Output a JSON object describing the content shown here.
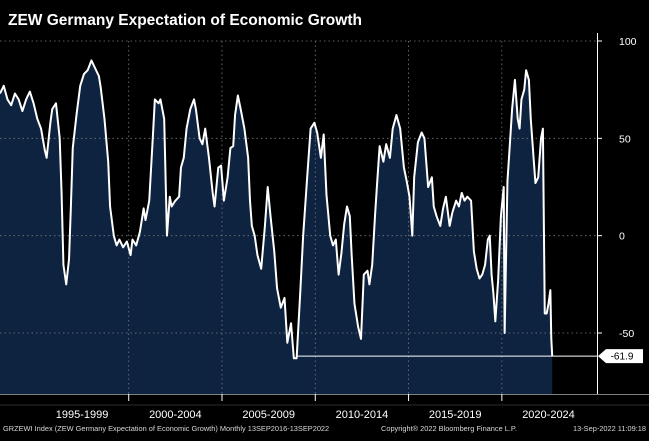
{
  "chart_data": {
    "type": "area",
    "title": "ZEW Germany Expectation of Economic Growth",
    "xlabel": "",
    "ylabel": "",
    "ylim": [
      -81,
      105
    ],
    "xlim": [
      1993.1,
      2025.1
    ],
    "yticks": [
      100,
      50,
      0,
      -50
    ],
    "x_period_labels": [
      {
        "label": "1995-1999",
        "start": 1995,
        "end": 2000
      },
      {
        "label": "2000-2004",
        "start": 2000,
        "end": 2005
      },
      {
        "label": "2005-2009",
        "start": 2005,
        "end": 2010
      },
      {
        "label": "2010-2014",
        "start": 2010,
        "end": 2015
      },
      {
        "label": "2015-2019",
        "start": 2015,
        "end": 2020
      },
      {
        "label": "2020-2024",
        "start": 2020,
        "end": 2025
      }
    ],
    "last_value": {
      "label": "-61.9",
      "value": -61.9,
      "x": 2022.7
    },
    "series": [
      {
        "name": "GRZEWI Index",
        "points": [
          [
            1993.1,
            73
          ],
          [
            1993.3,
            77
          ],
          [
            1993.5,
            70
          ],
          [
            1993.7,
            67
          ],
          [
            1993.9,
            73
          ],
          [
            1994.1,
            70
          ],
          [
            1994.3,
            64
          ],
          [
            1994.5,
            70
          ],
          [
            1994.7,
            74
          ],
          [
            1994.9,
            68
          ],
          [
            1995.1,
            60
          ],
          [
            1995.3,
            55
          ],
          [
            1995.5,
            44
          ],
          [
            1995.6,
            40
          ],
          [
            1995.8,
            58
          ],
          [
            1995.9,
            65
          ],
          [
            1996.1,
            68
          ],
          [
            1996.3,
            50
          ],
          [
            1996.4,
            22
          ],
          [
            1996.5,
            -15
          ],
          [
            1996.65,
            -25
          ],
          [
            1996.8,
            -12
          ],
          [
            1996.9,
            15
          ],
          [
            1997.0,
            45
          ],
          [
            1997.2,
            62
          ],
          [
            1997.4,
            77
          ],
          [
            1997.6,
            83
          ],
          [
            1997.8,
            85
          ],
          [
            1998.0,
            90
          ],
          [
            1998.2,
            86
          ],
          [
            1998.4,
            82
          ],
          [
            1998.5,
            76
          ],
          [
            1998.7,
            60
          ],
          [
            1998.9,
            38
          ],
          [
            1999.0,
            15
          ],
          [
            1999.2,
            0
          ],
          [
            1999.35,
            -5
          ],
          [
            1999.5,
            -2
          ],
          [
            1999.7,
            -6
          ],
          [
            1999.9,
            -3
          ],
          [
            2000.1,
            -10
          ],
          [
            2000.2,
            -2
          ],
          [
            2000.4,
            -5
          ],
          [
            2000.6,
            2
          ],
          [
            2000.8,
            14
          ],
          [
            2000.9,
            8
          ],
          [
            2001.1,
            18
          ],
          [
            2001.3,
            52
          ],
          [
            2001.4,
            70
          ],
          [
            2001.6,
            68
          ],
          [
            2001.7,
            70
          ],
          [
            2001.9,
            60
          ],
          [
            2002.05,
            0
          ],
          [
            2002.2,
            20
          ],
          [
            2002.3,
            15
          ],
          [
            2002.5,
            18
          ],
          [
            2002.7,
            20
          ],
          [
            2002.8,
            35
          ],
          [
            2002.95,
            40
          ],
          [
            2003.1,
            55
          ],
          [
            2003.3,
            65
          ],
          [
            2003.5,
            70
          ],
          [
            2003.6,
            65
          ],
          [
            2003.8,
            50
          ],
          [
            2003.95,
            47
          ],
          [
            2004.1,
            55
          ],
          [
            2004.3,
            40
          ],
          [
            2004.5,
            22
          ],
          [
            2004.6,
            15
          ],
          [
            2004.8,
            35
          ],
          [
            2004.95,
            36
          ],
          [
            2005.1,
            18
          ],
          [
            2005.3,
            30
          ],
          [
            2005.45,
            45
          ],
          [
            2005.6,
            46
          ],
          [
            2005.7,
            62
          ],
          [
            2005.85,
            72
          ],
          [
            2006.0,
            65
          ],
          [
            2006.2,
            55
          ],
          [
            2006.4,
            40
          ],
          [
            2006.5,
            18
          ],
          [
            2006.6,
            5
          ],
          [
            2006.75,
            0
          ],
          [
            2006.9,
            -10
          ],
          [
            2007.1,
            -17
          ],
          [
            2007.3,
            5
          ],
          [
            2007.45,
            25
          ],
          [
            2007.6,
            10
          ],
          [
            2007.8,
            -8
          ],
          [
            2007.95,
            -27
          ],
          [
            2008.15,
            -37
          ],
          [
            2008.35,
            -32
          ],
          [
            2008.5,
            -55
          ],
          [
            2008.7,
            -45
          ],
          [
            2008.85,
            -63
          ],
          [
            2009.0,
            -63
          ],
          [
            2009.2,
            -28
          ],
          [
            2009.35,
            0
          ],
          [
            2009.55,
            28
          ],
          [
            2009.75,
            55
          ],
          [
            2009.95,
            58
          ],
          [
            2010.1,
            53
          ],
          [
            2010.3,
            40
          ],
          [
            2010.45,
            52
          ],
          [
            2010.6,
            21
          ],
          [
            2010.8,
            0
          ],
          [
            2010.95,
            -5
          ],
          [
            2011.1,
            -2
          ],
          [
            2011.25,
            -20
          ],
          [
            2011.4,
            -9
          ],
          [
            2011.55,
            6
          ],
          [
            2011.7,
            15
          ],
          [
            2011.85,
            10
          ],
          [
            2011.95,
            -10
          ],
          [
            2012.1,
            -35
          ],
          [
            2012.3,
            -47
          ],
          [
            2012.45,
            -53
          ],
          [
            2012.6,
            -20
          ],
          [
            2012.8,
            -18
          ],
          [
            2012.9,
            -25
          ],
          [
            2013.05,
            -15
          ],
          [
            2013.2,
            10
          ],
          [
            2013.3,
            25
          ],
          [
            2013.45,
            46
          ],
          [
            2013.65,
            38
          ],
          [
            2013.8,
            47
          ],
          [
            2014.0,
            40
          ],
          [
            2014.15,
            55
          ],
          [
            2014.35,
            62
          ],
          [
            2014.55,
            55
          ],
          [
            2014.75,
            35
          ],
          [
            2014.9,
            28
          ],
          [
            2015.05,
            20
          ],
          [
            2015.2,
            0
          ],
          [
            2015.3,
            30
          ],
          [
            2015.5,
            48
          ],
          [
            2015.7,
            53
          ],
          [
            2015.85,
            50
          ],
          [
            2016.05,
            25
          ],
          [
            2016.25,
            30
          ],
          [
            2016.35,
            15
          ],
          [
            2016.5,
            10
          ],
          [
            2016.7,
            5
          ],
          [
            2016.85,
            14
          ],
          [
            2017.0,
            20
          ],
          [
            2017.2,
            5
          ],
          [
            2017.35,
            12
          ],
          [
            2017.55,
            18
          ],
          [
            2017.7,
            15
          ],
          [
            2017.85,
            22
          ],
          [
            2018.0,
            18
          ],
          [
            2018.15,
            20
          ],
          [
            2018.35,
            18
          ],
          [
            2018.5,
            -8
          ],
          [
            2018.65,
            -17
          ],
          [
            2018.8,
            -22
          ],
          [
            2018.95,
            -20
          ],
          [
            2019.1,
            -15
          ],
          [
            2019.25,
            -2
          ],
          [
            2019.35,
            0
          ],
          [
            2019.45,
            -20
          ],
          [
            2019.55,
            -30
          ],
          [
            2019.65,
            -44
          ],
          [
            2019.8,
            -23
          ],
          [
            2019.95,
            10
          ],
          [
            2020.1,
            25
          ],
          [
            2020.15,
            -50
          ],
          [
            2020.3,
            28
          ],
          [
            2020.45,
            50
          ],
          [
            2020.55,
            65
          ],
          [
            2020.7,
            80
          ],
          [
            2020.85,
            60
          ],
          [
            2020.95,
            55
          ],
          [
            2021.05,
            70
          ],
          [
            2021.2,
            75
          ],
          [
            2021.3,
            85
          ],
          [
            2021.45,
            80
          ],
          [
            2021.55,
            60
          ],
          [
            2021.7,
            40
          ],
          [
            2021.8,
            27
          ],
          [
            2021.95,
            30
          ],
          [
            2022.1,
            50
          ],
          [
            2022.2,
            55
          ],
          [
            2022.3,
            -40
          ],
          [
            2022.4,
            -40
          ],
          [
            2022.5,
            -35
          ],
          [
            2022.6,
            -28
          ],
          [
            2022.65,
            -53
          ],
          [
            2022.7,
            -61.9
          ]
        ]
      }
    ]
  },
  "footer": {
    "left": "GRZEWI Index (ZEW Germany Expectation of Economic Growth)  Monthly 13SEP2016-13SEP2022",
    "center": "Copyright® 2022 Bloomberg Finance L.P.",
    "right": "13-Sep-2022 11:09:18"
  },
  "colors": {
    "background": "#000000",
    "area_fill": "#0e2340",
    "line": "#ffffff",
    "grid": "#7a7a7a"
  }
}
